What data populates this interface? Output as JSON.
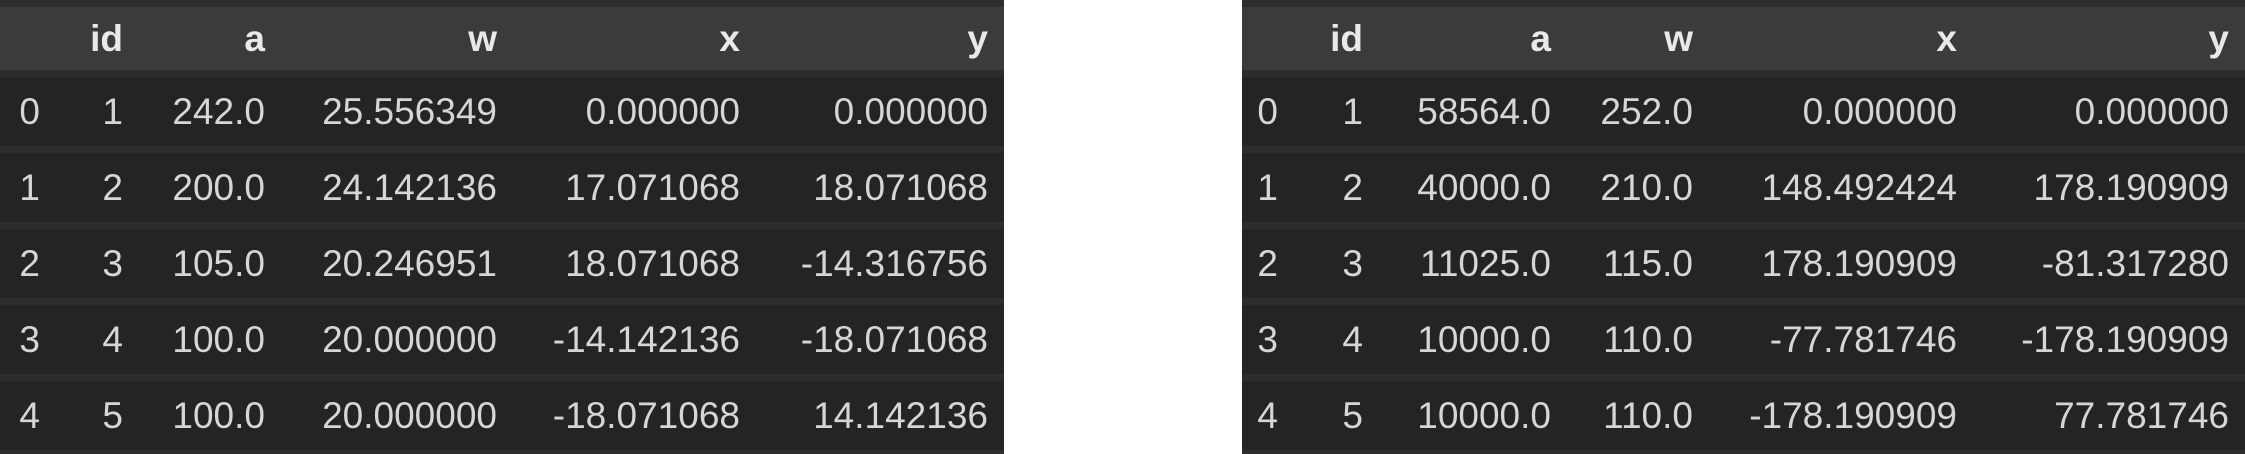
{
  "theme": {
    "page_bg": "#ffffff",
    "table_bg": "#2d2d2e",
    "header_bg": "#3b3b3c",
    "row_bg": "#242425",
    "header_text": "#e9e9e9",
    "cell_text": "#d6d6d6"
  },
  "tables": [
    {
      "name": "dataframe-left",
      "index_header": "",
      "columns": [
        "id",
        "a",
        "w",
        "x",
        "y"
      ],
      "rows": [
        {
          "index": "0",
          "cells": [
            "1",
            "242.0",
            "25.556349",
            "0.000000",
            "0.000000"
          ]
        },
        {
          "index": "1",
          "cells": [
            "2",
            "200.0",
            "24.142136",
            "17.071068",
            "18.071068"
          ]
        },
        {
          "index": "2",
          "cells": [
            "3",
            "105.0",
            "20.246951",
            "18.071068",
            "-14.316756"
          ]
        },
        {
          "index": "3",
          "cells": [
            "4",
            "100.0",
            "20.000000",
            "-14.142136",
            "-18.071068"
          ]
        },
        {
          "index": "4",
          "cells": [
            "5",
            "100.0",
            "20.000000",
            "-18.071068",
            "14.142136"
          ]
        }
      ]
    },
    {
      "name": "dataframe-right",
      "index_header": "",
      "columns": [
        "id",
        "a",
        "w",
        "x",
        "y"
      ],
      "rows": [
        {
          "index": "0",
          "cells": [
            "1",
            "58564.0",
            "252.0",
            "0.000000",
            "0.000000"
          ]
        },
        {
          "index": "1",
          "cells": [
            "2",
            "40000.0",
            "210.0",
            "148.492424",
            "178.190909"
          ]
        },
        {
          "index": "2",
          "cells": [
            "3",
            "11025.0",
            "115.0",
            "178.190909",
            "-81.317280"
          ]
        },
        {
          "index": "3",
          "cells": [
            "4",
            "10000.0",
            "110.0",
            "-77.781746",
            "-178.190909"
          ]
        },
        {
          "index": "4",
          "cells": [
            "5",
            "10000.0",
            "110.0",
            "-178.190909",
            "77.781746"
          ]
        }
      ]
    }
  ]
}
